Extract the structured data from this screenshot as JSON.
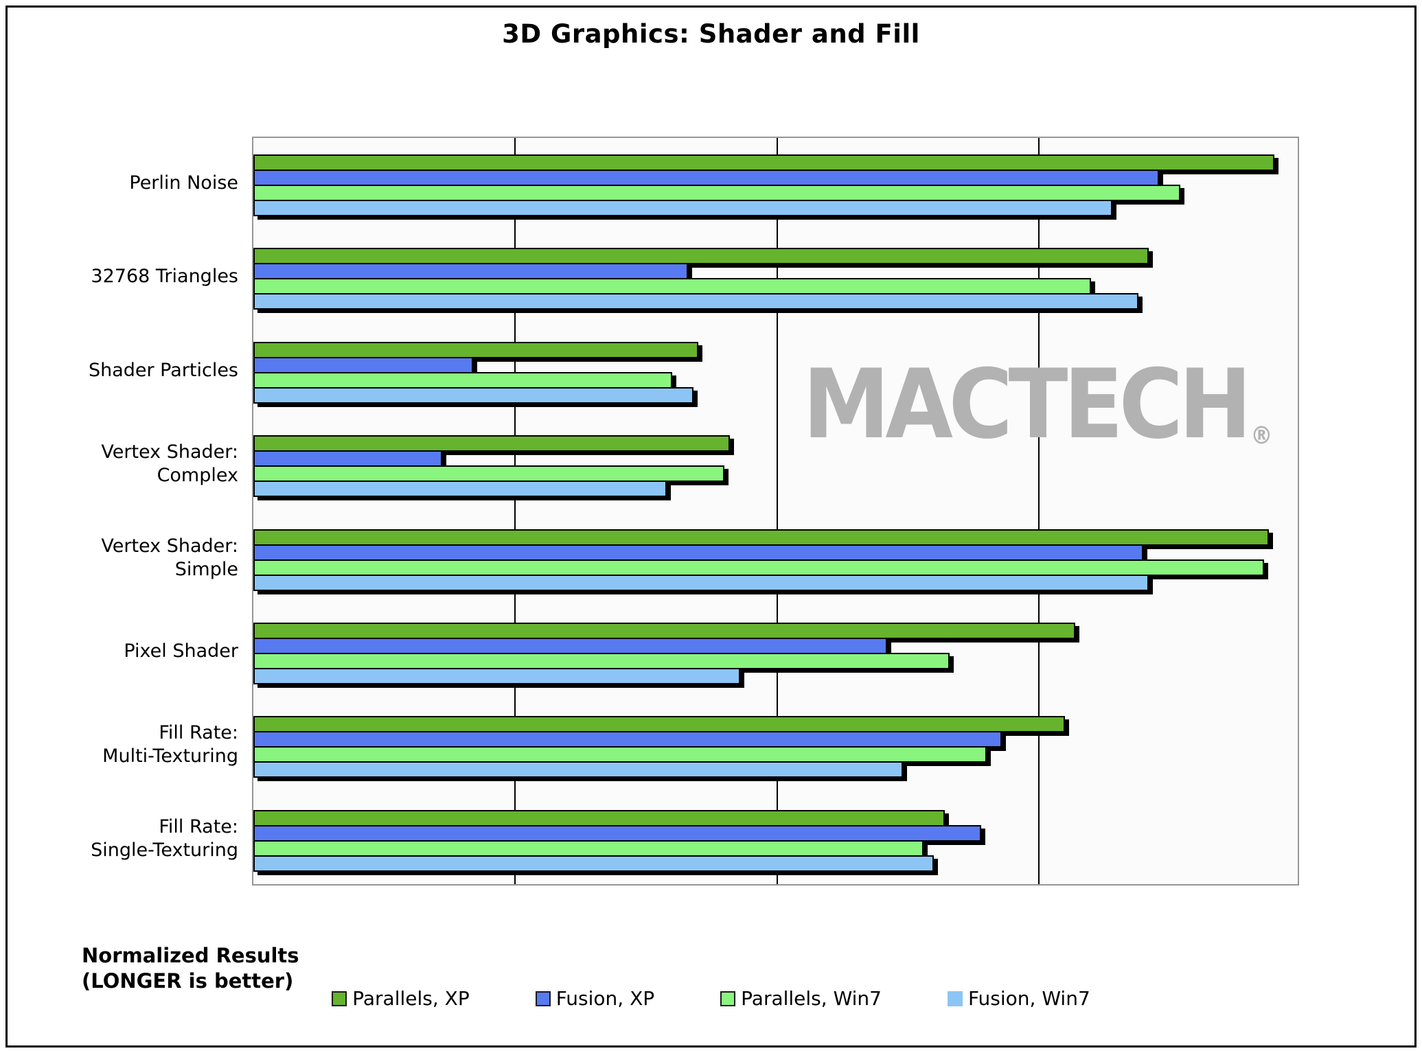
{
  "page": {
    "title": "3D Graphics: Shader and Fill",
    "note": "Normalized Results\n(LONGER is better)",
    "watermark": "MACTECH",
    "watermark_reg": "®"
  },
  "chart_data": {
    "type": "bar",
    "orientation": "horizontal",
    "title": "3D Graphics: Shader and Fill",
    "note": "Normalized Results (LONGER is better)",
    "categories": [
      "Perlin Noise",
      "32768 Triangles",
      "Shader Particles",
      "Vertex Shader:\nComplex",
      "Vertex Shader:\nSimple",
      "Pixel Shader",
      "Fill Rate:\nMulti-Texturing",
      "Fill Rate:\nSingle-Texturing"
    ],
    "series": [
      {
        "name": "Parallels, XP",
        "color": "#66b32e",
        "swatch_border": "#1a1a1a",
        "values": [
          1.95,
          1.71,
          0.85,
          0.91,
          1.94,
          1.57,
          1.55,
          1.32
        ]
      },
      {
        "name": "Fusion, XP",
        "color": "#577af0",
        "swatch_border": "#1a1a1a",
        "values": [
          1.73,
          0.83,
          0.42,
          0.36,
          1.7,
          1.21,
          1.43,
          1.39
        ]
      },
      {
        "name": "Parallels, Win7",
        "color": "#8af57e",
        "swatch_border": "#1a1a1a",
        "values": [
          1.77,
          1.6,
          0.8,
          0.9,
          1.93,
          1.33,
          1.4,
          1.28
        ]
      },
      {
        "name": "Fusion, Win7",
        "color": "#8cc5f5",
        "swatch_border": null,
        "values": [
          1.64,
          1.69,
          0.84,
          0.79,
          1.71,
          0.93,
          1.24,
          1.3
        ]
      }
    ],
    "xlim": [
      0,
      2
    ],
    "gridlines_x": [
      0.5,
      1.0,
      1.5
    ],
    "axis_tick_labels_visible": false,
    "grid": true,
    "legend_position": "bottom",
    "bar_outline_color": "#000000",
    "plot_background": "#fbfbfb",
    "watermark_text": "MACTECH",
    "watermark_color": "#b2b2b2"
  }
}
